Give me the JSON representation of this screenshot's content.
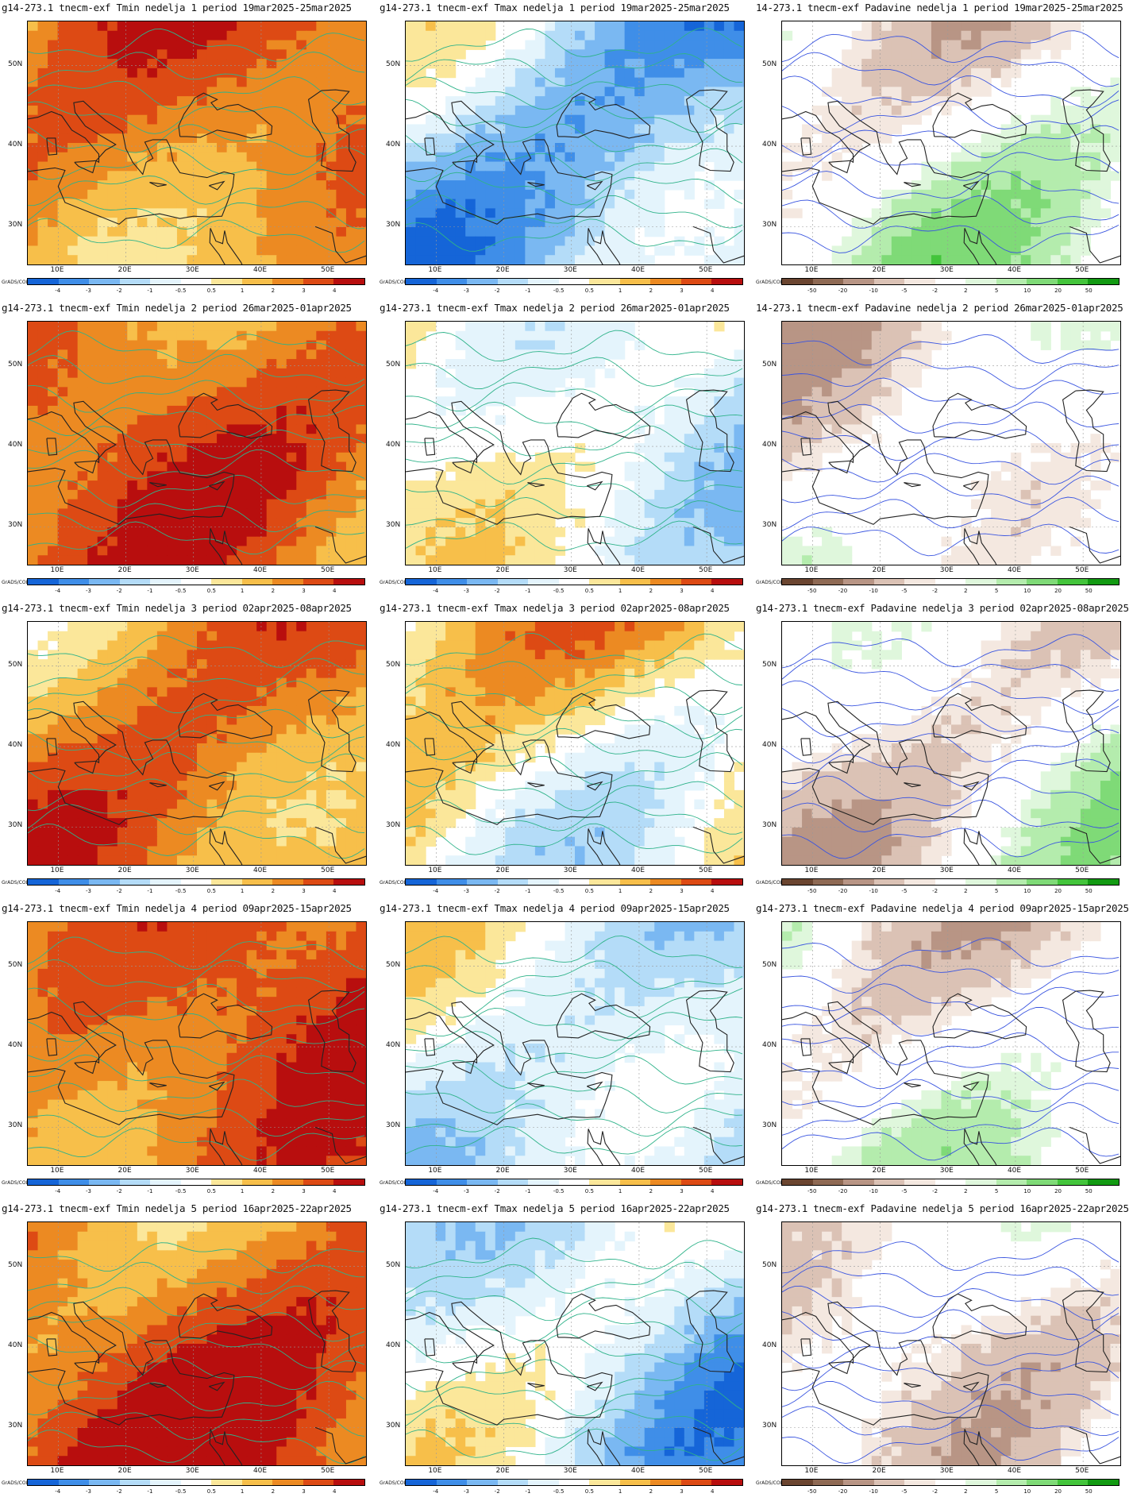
{
  "palettes": {
    "temp": [
      "#1565d8",
      "#3f8ee8",
      "#7ab8f2",
      "#b4dcf8",
      "#e4f4fc",
      "#ffffff",
      "#fbe79a",
      "#f7bf4a",
      "#ec8a22",
      "#dd4a14",
      "#b80e0e"
    ],
    "precip": [
      "#6b4530",
      "#8f6a54",
      "#b89585",
      "#dbc2b5",
      "#f4e8e0",
      "#ffffff",
      "#dff7dc",
      "#b4ecad",
      "#7fda77",
      "#43c43b",
      "#129a12"
    ]
  },
  "colorbar_ticks": {
    "temp": [
      "-4",
      "-3",
      "-2",
      "-1",
      "-0.5",
      "0.5",
      "1",
      "2",
      "3",
      "4"
    ],
    "precip": [
      "-50",
      "-20",
      "-10",
      "-5",
      "-2",
      "2",
      "5",
      "10",
      "20",
      "50"
    ]
  },
  "grads_label": "GrADS/COLA",
  "lat_labels": [
    "50N",
    "40N",
    "30N"
  ],
  "lon_labels": [
    "10E",
    "20E",
    "30E",
    "40E",
    "50E"
  ],
  "panels": [
    {
      "title": "g14-273.1 tnecm-exf Tmin nedelja 1 period 19mar2025-25mar2025",
      "var": "Tmin"
    },
    {
      "title": "g14-273.1 tnecm-exf Tmax nedelja 1 period 19mar2025-25mar2025",
      "var": "Tmax"
    },
    {
      "title": "14-273.1 tnecm-exf Padavine nedelja 1 period 19mar2025-25mar2025",
      "var": "Padavine"
    },
    {
      "title": "g14-273.1 tnecm-exf Tmin nedelja 2 period 26mar2025-01apr2025",
      "var": "Tmin"
    },
    {
      "title": "g14-273.1 tnecm-exf Tmax nedelja 2 period 26mar2025-01apr2025",
      "var": "Tmax"
    },
    {
      "title": "14-273.1 tnecm-exf Padavine nedelja 2 period 26mar2025-01apr2025",
      "var": "Padavine"
    },
    {
      "title": "g14-273.1 tnecm-exf Tmin nedelja 3 period 02apr2025-08apr2025",
      "var": "Tmin"
    },
    {
      "title": "g14-273.1 tnecm-exf Tmax nedelja 3 period 02apr2025-08apr2025",
      "var": "Tmax"
    },
    {
      "title": "g14-273.1 tnecm-exf Padavine nedelja 3 period 02apr2025-08apr2025",
      "var": "Padavine"
    },
    {
      "title": "g14-273.1 tnecm-exf Tmin nedelja 4 period 09apr2025-15apr2025",
      "var": "Tmin"
    },
    {
      "title": "g14-273.1 tnecm-exf Tmax nedelja 4 period 09apr2025-15apr2025",
      "var": "Tmax"
    },
    {
      "title": "g14-273.1 tnecm-exf Padavine nedelja 4 period 09apr2025-15apr2025",
      "var": "Padavine"
    },
    {
      "title": "g14-273.1 tnecm-exf Tmin nedelja 5 period 16apr2025-22apr2025",
      "var": "Tmin"
    },
    {
      "title": "g14-273.1 tnecm-exf Tmax nedelja 5 period 16apr2025-22apr2025",
      "var": "Tmax"
    },
    {
      "title": "g14-273.1 tnecm-exf Padavine nedelja 5 period 16apr2025-22apr2025",
      "var": "Padavine"
    }
  ]
}
